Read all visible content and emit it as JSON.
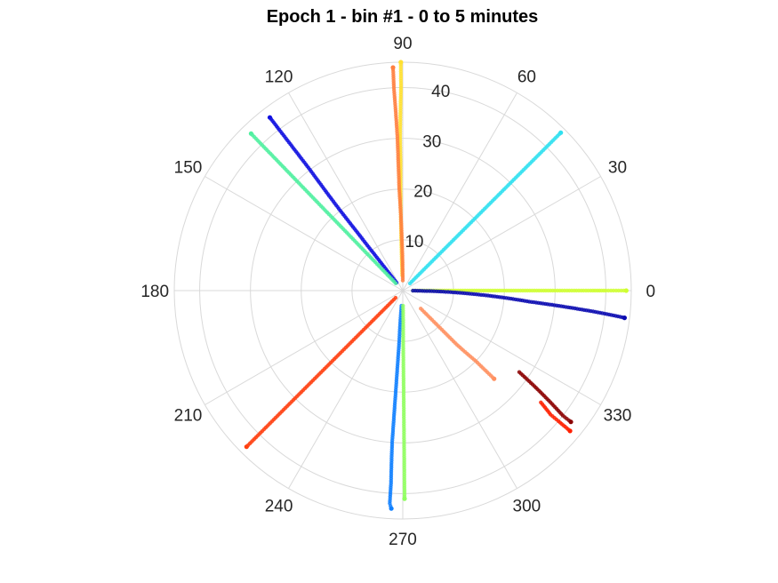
{
  "chart_data": {
    "type": "scatter",
    "subtype": "polar",
    "title": "Epoch 1 - bin #1 - 0 to 5 minutes",
    "angle_unit": "degrees",
    "angle_ticks": [
      0,
      30,
      60,
      90,
      120,
      150,
      180,
      210,
      240,
      270,
      300,
      330
    ],
    "r_ticks": [
      10,
      20,
      30,
      40
    ],
    "r_lim": [
      0,
      45
    ],
    "grid": true,
    "colors": {
      "grid": "#d9d9d9",
      "tick_text": "#262626",
      "title": "#000000"
    },
    "series": [
      {
        "color": "#cfff30",
        "points": [
          [
            0,
            2
          ],
          [
            0,
            10
          ],
          [
            0,
            20
          ],
          [
            0,
            30
          ],
          [
            0,
            37
          ],
          [
            0,
            40
          ],
          [
            0,
            42
          ],
          [
            0,
            44
          ]
        ]
      },
      {
        "color": "#0a0ab0",
        "points": [
          [
            -0.5,
            2
          ],
          [
            -1.5,
            8
          ],
          [
            -3,
            15
          ],
          [
            -4,
            20
          ],
          [
            -5,
            25
          ],
          [
            -5.5,
            30
          ],
          [
            -6,
            35
          ],
          [
            -6.5,
            40
          ],
          [
            -7,
            44
          ]
        ]
      },
      {
        "color": "#30e0f0",
        "points": [
          [
            45,
            2
          ],
          [
            45,
            10
          ],
          [
            45,
            20
          ],
          [
            45,
            30
          ],
          [
            45,
            35
          ],
          [
            45,
            40
          ],
          [
            45,
            44
          ]
        ]
      },
      {
        "color": "#ffe030",
        "points": [
          [
            92,
            3
          ],
          [
            91.5,
            15
          ],
          [
            91,
            25
          ],
          [
            91,
            30
          ],
          [
            90.5,
            40
          ],
          [
            90.5,
            45
          ]
        ]
      },
      {
        "color": "#ff8040",
        "points": [
          [
            90,
            2
          ],
          [
            91,
            10
          ],
          [
            92,
            20
          ],
          [
            92,
            30
          ],
          [
            92.5,
            40
          ],
          [
            92.5,
            44
          ]
        ]
      },
      {
        "color": "#1010e0",
        "points": [
          [
            128,
            2
          ],
          [
            128,
            10
          ],
          [
            128,
            20
          ],
          [
            127.5,
            30
          ],
          [
            127.5,
            40
          ],
          [
            127.5,
            43
          ]
        ]
      },
      {
        "color": "#50f0a0",
        "points": [
          [
            134,
            2
          ],
          [
            134,
            10
          ],
          [
            134,
            20
          ],
          [
            134,
            30
          ],
          [
            134,
            38
          ],
          [
            134,
            43
          ]
        ]
      },
      {
        "color": "#ff4010",
        "points": [
          [
            225,
            2
          ],
          [
            225,
            10
          ],
          [
            225,
            20
          ],
          [
            225,
            30
          ],
          [
            225,
            40
          ],
          [
            225,
            43.5
          ]
        ]
      },
      {
        "color": "#1080ff",
        "points": [
          [
            265,
            3
          ],
          [
            266,
            10
          ],
          [
            266,
            20
          ],
          [
            266,
            30
          ],
          [
            266.5,
            38
          ],
          [
            266.5,
            42
          ],
          [
            267,
            43
          ]
        ]
      },
      {
        "color": "#90ff60",
        "points": [
          [
            271,
            3
          ],
          [
            270.5,
            10
          ],
          [
            270.5,
            20
          ],
          [
            270.5,
            30
          ],
          [
            270.5,
            38
          ],
          [
            270.5,
            41
          ]
        ]
      },
      {
        "color": "#ff9060",
        "points": [
          [
            315,
            5
          ],
          [
            315,
            10
          ],
          [
            315,
            15
          ],
          [
            316,
            20
          ],
          [
            316,
            25
          ]
        ]
      },
      {
        "color": "#ff2000",
        "points": [
          [
            321,
            35
          ],
          [
            320,
            38
          ],
          [
            320,
            40
          ],
          [
            320,
            43
          ]
        ]
      },
      {
        "color": "#8b0000",
        "points": [
          [
            325,
            28
          ],
          [
            324,
            32
          ],
          [
            323,
            36
          ],
          [
            322,
            40
          ],
          [
            322,
            42
          ]
        ]
      }
    ]
  }
}
